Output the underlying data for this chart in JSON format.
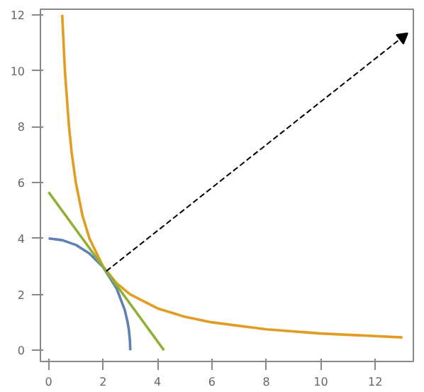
{
  "chart_data": {
    "type": "line",
    "series": [
      {
        "color": "#5e81b5",
        "x": [
          0,
          0.5,
          1,
          1.5,
          2,
          2.5,
          2.8,
          2.9,
          2.95,
          2.99,
          3
        ],
        "values": [
          4,
          3.94,
          3.77,
          3.46,
          2.98,
          2.21,
          1.44,
          1.02,
          0.73,
          0.33,
          0
        ]
      },
      {
        "color": "#e19c24",
        "x": [
          0.5,
          0.6,
          0.75,
          0.85,
          1,
          1.25,
          1.5,
          2,
          2.5,
          3,
          4,
          5,
          6,
          8,
          10,
          13
        ],
        "values": [
          12,
          10,
          8,
          7.06,
          6,
          4.8,
          4,
          3,
          2.4,
          2,
          1.5,
          1.2,
          1,
          0.75,
          0.6,
          0.46
        ]
      },
      {
        "color": "#8fb032",
        "x": [
          0,
          4.24
        ],
        "values": [
          5.66,
          0
        ]
      },
      {
        "color": "#000000",
        "x": [
          2.12,
          13
        ],
        "values": [
          2.83,
          11.2
        ],
        "line_style": "dashed"
      }
    ],
    "xlim": [
      -0.3,
      13.4
    ],
    "ylim": [
      -0.4,
      12.2
    ],
    "xticks": [
      0,
      2,
      4,
      6,
      8,
      10,
      12
    ],
    "yticks": [
      0,
      2,
      4,
      6,
      8,
      10,
      12
    ],
    "grid": false
  }
}
